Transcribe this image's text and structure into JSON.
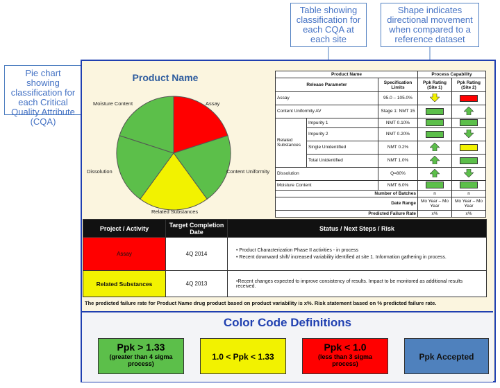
{
  "callouts": {
    "pie": "Pie chart showing classification for each Critical Quality Attribute (CQA)",
    "table": "Table showing classification for each CQA at each site",
    "shape": "Shape indicates directional movement when compared to a reference dataset"
  },
  "pie": {
    "title": "Product Name",
    "labels": {
      "moisture": "Moisture Content",
      "assay": "Assay",
      "content": "Content Uniformity",
      "dissolution": "Dissolution",
      "related": "Related Substances"
    }
  },
  "chart_data": {
    "type": "pie",
    "title": "Product Name",
    "slices": [
      {
        "name": "Assay",
        "value": 1,
        "color": "#ff0000"
      },
      {
        "name": "Content Uniformity",
        "value": 1,
        "color": "#5cbf4a"
      },
      {
        "name": "Related Substances",
        "value": 1,
        "color": "#f2f200"
      },
      {
        "name": "Dissolution",
        "value": 1,
        "color": "#5cbf4a"
      },
      {
        "name": "Moisture Content",
        "value": 1,
        "color": "#5cbf4a"
      }
    ]
  },
  "pc_table": {
    "h_product": "Product Name",
    "h_release": "Release Parameter",
    "h_spec": "Specification Limits",
    "h_process": "Process Capability",
    "h_site1": "Ppk Rating (Site 1)",
    "h_site2": "Ppk Rating (Site 2)",
    "related_group": "Related Substances",
    "rows": [
      {
        "param": "Assay",
        "spec": "95.0 – 105.0%"
      },
      {
        "param": "Content Uniformity AV",
        "spec": "Stage 1: NMT 15"
      },
      {
        "param": "Impurity 1",
        "spec": "NMT 0.10%"
      },
      {
        "param": "Impurity 2",
        "spec": "NMT 0.20%"
      },
      {
        "param": "Single Unidentified",
        "spec": "NMT 0.2%"
      },
      {
        "param": "Total Unidentified",
        "spec": "NMT 1.0%"
      },
      {
        "param": "Dissolution",
        "spec": "Q=80%"
      },
      {
        "param": "Moisture Content",
        "spec": "NMT 6.0%"
      }
    ],
    "batches_label": "Number of Batches",
    "batches_s1": "n",
    "batches_s2": "n",
    "date_label": "Date Range",
    "date_s1": "Mo Year – Mo Year",
    "date_s2": "Mo Year – Mo Year",
    "fail_label": "Predicted Failure Rate",
    "fail_s1": "x%",
    "fail_s2": "x%"
  },
  "status": {
    "h_project": "Project / Activity",
    "h_target": "Target Completion Date",
    "h_status": "Status / Next Steps / Risk",
    "r1_name": "Assay",
    "r1_date": "4Q 2014",
    "r1_b1": "Product Characterization Phase II activities - in process",
    "r1_b2": "Recent downward shift/ increased variability identified at site 1.  Information gathering in process.",
    "r2_name": "Related Substances",
    "r2_date": "4Q 2013",
    "r2_text": "•Recent changes expected to improve consistency of results.  Impact to be monitored as additional results received.",
    "footer": "The predicted failure rate for Product Name drug product based on product variability is x%.  Risk statement based on % predicted failure rate."
  },
  "legend": {
    "title": "Color Code Definitions",
    "g_main": "Ppk > 1.33",
    "g_sub": "(greater than 4 sigma process)",
    "y_main": "1.0 < Ppk < 1.33",
    "r_main": "Ppk < 1.0",
    "r_sub": "(less than 3 sigma process)",
    "b_main": "Ppk Accepted"
  },
  "colors": {
    "green": "#5cbf4a",
    "yellow": "#f2f200",
    "red": "#ff0000",
    "blue": "#4f81bd",
    "navy": "#1f3fb0"
  }
}
